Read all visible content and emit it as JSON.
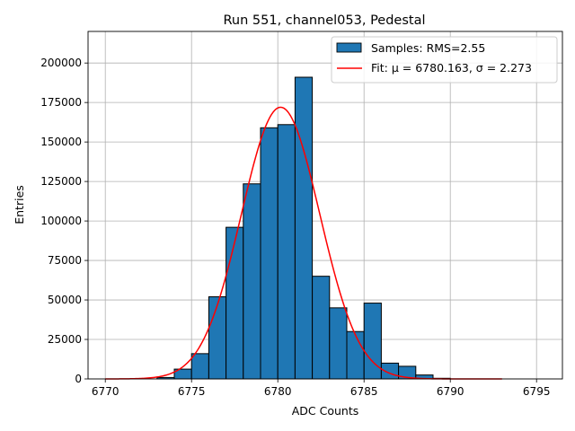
{
  "chart_data": {
    "type": "bar",
    "title": "Run 551, channel053, Pedestal",
    "xlabel": "ADC Counts",
    "ylabel": "Entries",
    "xlim": [
      6769,
      6796.5
    ],
    "ylim": [
      0,
      220000
    ],
    "xticks": [
      6770,
      6775,
      6780,
      6785,
      6790,
      6795
    ],
    "yticks": [
      0,
      25000,
      50000,
      75000,
      100000,
      125000,
      150000,
      175000,
      200000
    ],
    "grid": true,
    "legend_position": "top-right",
    "bin_width": 1,
    "bins": [
      {
        "x0": 6773,
        "value": 900
      },
      {
        "x0": 6774,
        "value": 6200
      },
      {
        "x0": 6775,
        "value": 16000
      },
      {
        "x0": 6776,
        "value": 52000
      },
      {
        "x0": 6777,
        "value": 96000
      },
      {
        "x0": 6778,
        "value": 123500
      },
      {
        "x0": 6779,
        "value": 159000
      },
      {
        "x0": 6780,
        "value": 161000
      },
      {
        "x0": 6781,
        "value": 191000
      },
      {
        "x0": 6782,
        "value": 65000
      },
      {
        "x0": 6783,
        "value": 45000
      },
      {
        "x0": 6784,
        "value": 30000
      },
      {
        "x0": 6785,
        "value": 48000
      },
      {
        "x0": 6786,
        "value": 10000
      },
      {
        "x0": 6787,
        "value": 8000
      },
      {
        "x0": 6788,
        "value": 2500
      },
      {
        "x0": 6789,
        "value": 400
      }
    ],
    "fit": {
      "mu": 6780.163,
      "sigma": 2.273,
      "amplitude": 172000,
      "x_range": [
        6770,
        6793
      ]
    },
    "series": [
      {
        "name": "Samples: RMS=2.55",
        "kind": "histogram",
        "color": "#1f77b4"
      },
      {
        "name": "Fit: μ = 6780.163, σ = 2.273",
        "kind": "line",
        "color": "#ff0000"
      }
    ]
  }
}
